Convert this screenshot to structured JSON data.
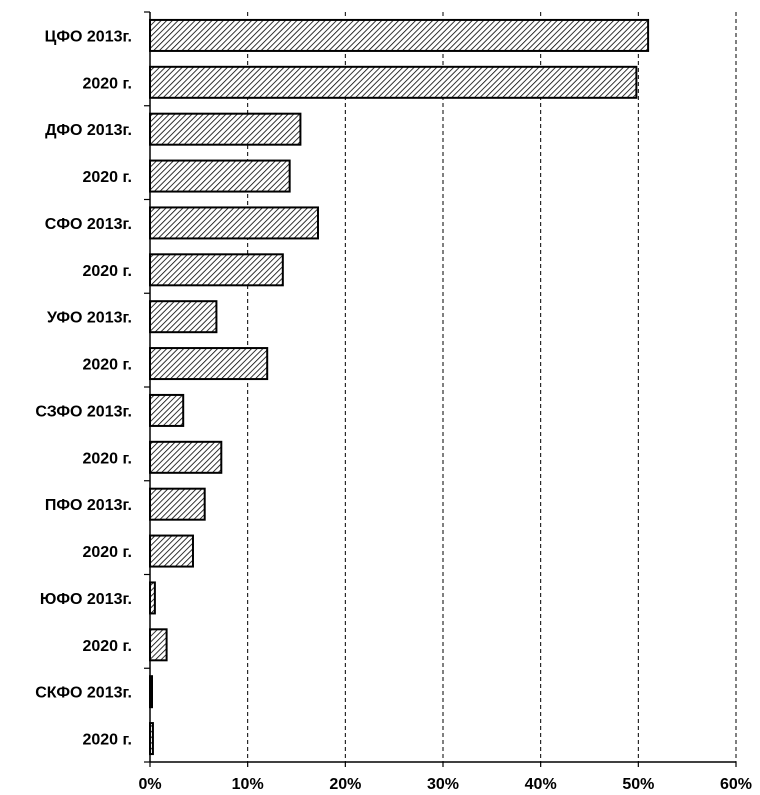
{
  "chart_data": {
    "type": "bar",
    "orientation": "horizontal",
    "categories": [
      "ЦФО 2013г.",
      "2020 г.",
      "ДФО 2013г.",
      "2020 г.",
      "СФО 2013г.",
      "2020 г.",
      "УФО 2013г.",
      "2020 г.",
      "СЗФО 2013г.",
      "2020 г.",
      "ПФО 2013г.",
      "2020 г.",
      "ЮФО 2013г.",
      "2020 г.",
      "СКФО 2013г.",
      "2020 г."
    ],
    "values": [
      51.0,
      49.8,
      15.4,
      14.3,
      17.2,
      13.6,
      6.8,
      12.0,
      3.4,
      7.3,
      5.6,
      4.4,
      0.5,
      1.7,
      0.2,
      0.3
    ],
    "xlim": [
      0,
      60
    ],
    "xticks": [
      0,
      10,
      20,
      30,
      40,
      50,
      60
    ],
    "xtick_labels": [
      "0%",
      "10%",
      "20%",
      "30%",
      "40%",
      "50%",
      "60%"
    ],
    "title": "",
    "xlabel": "",
    "ylabel": "",
    "grid": "vertical dashed",
    "legend": "none",
    "bar_fill": "diagonal hatch",
    "bar_color": "#000000"
  }
}
